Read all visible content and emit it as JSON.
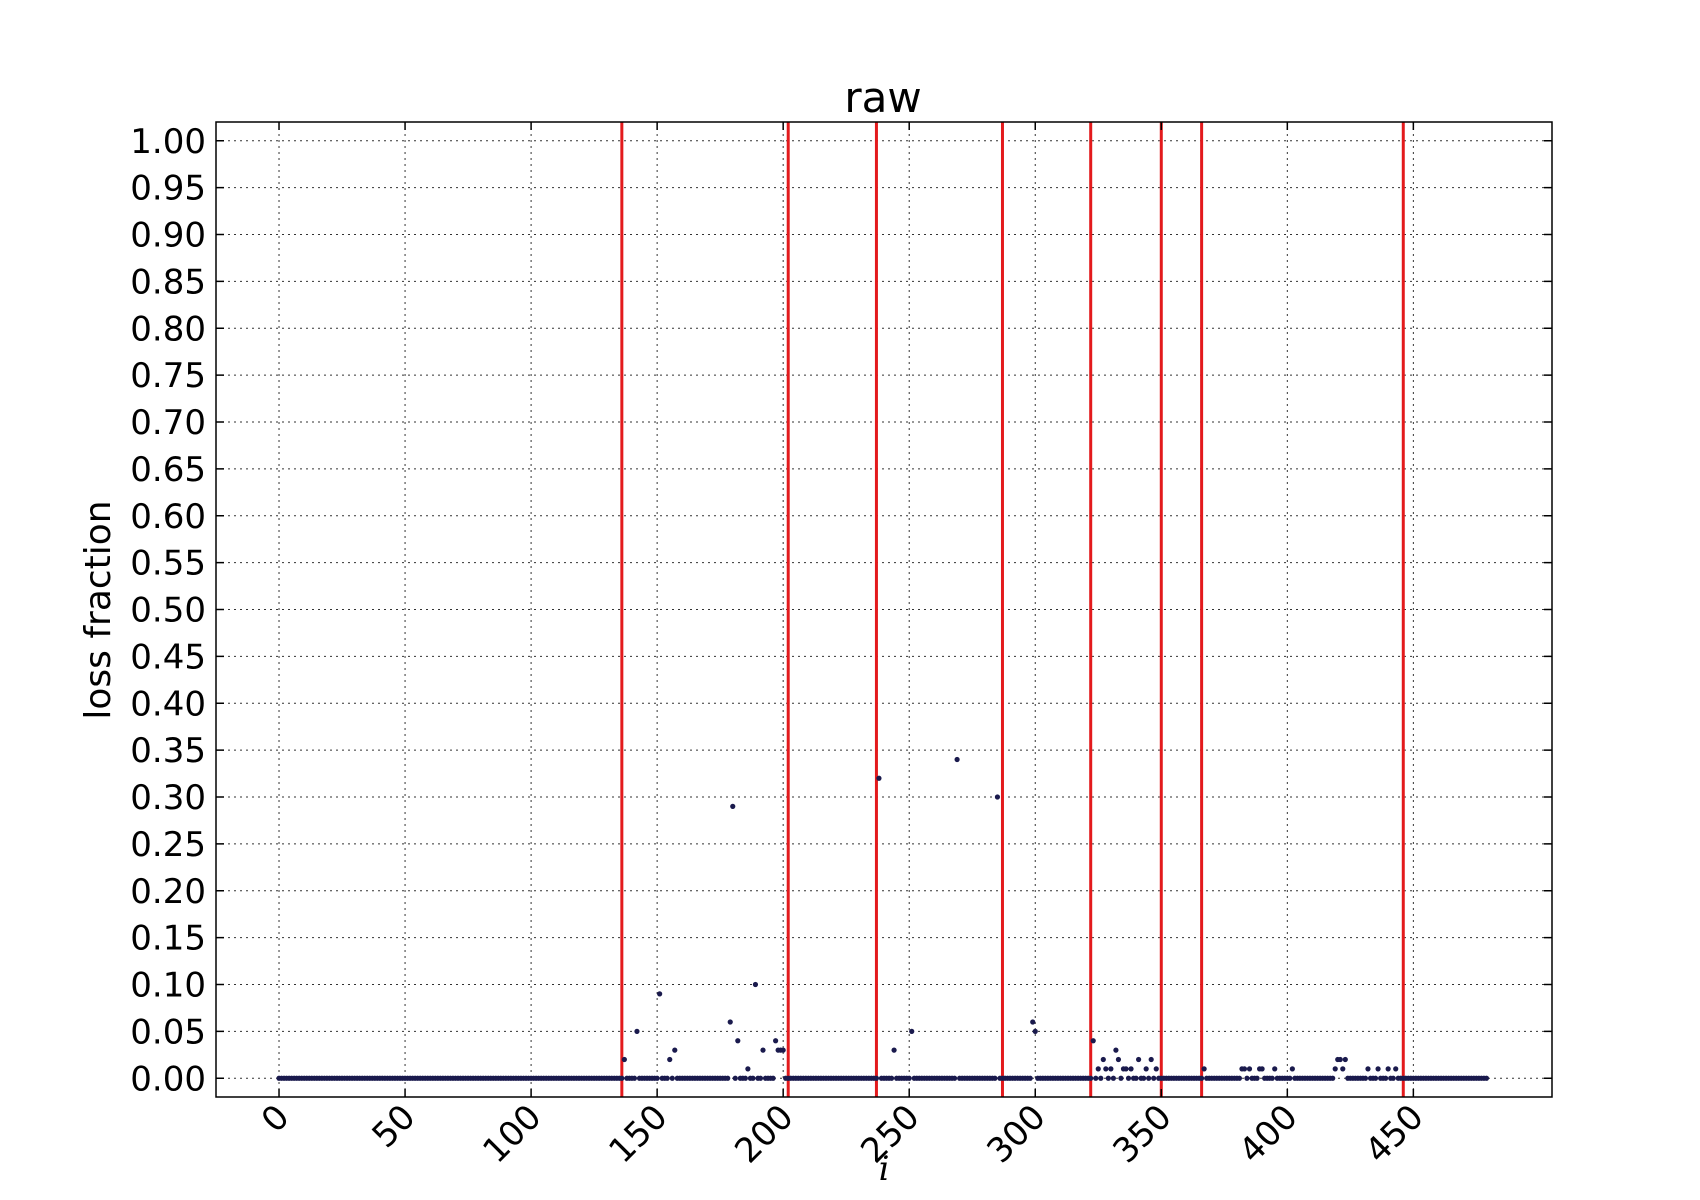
{
  "chart_data": {
    "type": "scatter",
    "title": "raw",
    "xlabel": "i",
    "ylabel": "loss fraction",
    "xlim": [
      -25,
      505
    ],
    "ylim": [
      -0.02,
      1.02
    ],
    "x_ticks": [
      0,
      50,
      100,
      150,
      200,
      250,
      300,
      350,
      400,
      450
    ],
    "x_tick_labels": [
      "0",
      "50",
      "100",
      "150",
      "200",
      "250",
      "300",
      "350",
      "400",
      "450"
    ],
    "y_ticks": [
      0.0,
      0.05,
      0.1,
      0.15,
      0.2,
      0.25,
      0.3,
      0.35,
      0.4,
      0.45,
      0.5,
      0.55,
      0.6,
      0.65,
      0.7,
      0.75,
      0.8,
      0.85,
      0.9,
      0.95,
      1.0
    ],
    "y_tick_labels": [
      "0.00",
      "0.05",
      "0.10",
      "0.15",
      "0.20",
      "0.25",
      "0.30",
      "0.35",
      "0.40",
      "0.45",
      "0.50",
      "0.55",
      "0.60",
      "0.65",
      "0.70",
      "0.75",
      "0.80",
      "0.85",
      "0.90",
      "0.95",
      "1.00"
    ],
    "grid": true,
    "marker_color": "#1a1a4d",
    "vline_color": "#e31a1c",
    "vertical_lines": [
      136,
      202,
      237,
      287,
      322,
      350,
      366,
      446
    ],
    "point_count": 480,
    "nonzero_points": [
      [
        137,
        0.02
      ],
      [
        142,
        0.05
      ],
      [
        151,
        0.09
      ],
      [
        155,
        0.02
      ],
      [
        157,
        0.03
      ],
      [
        179,
        0.06
      ],
      [
        180,
        0.29
      ],
      [
        182,
        0.04
      ],
      [
        186,
        0.01
      ],
      [
        189,
        0.1
      ],
      [
        192,
        0.03
      ],
      [
        197,
        0.04
      ],
      [
        198,
        0.03
      ],
      [
        199,
        0.03
      ],
      [
        200,
        0.03
      ],
      [
        238,
        0.32
      ],
      [
        244,
        0.03
      ],
      [
        251,
        0.05
      ],
      [
        269,
        0.34
      ],
      [
        285,
        0.3
      ],
      [
        299,
        0.06
      ],
      [
        300,
        0.05
      ],
      [
        323,
        0.04
      ],
      [
        325,
        0.01
      ],
      [
        327,
        0.02
      ],
      [
        328,
        0.01
      ],
      [
        330,
        0.01
      ],
      [
        332,
        0.03
      ],
      [
        333,
        0.02
      ],
      [
        335,
        0.01
      ],
      [
        336,
        0.01
      ],
      [
        338,
        0.01
      ],
      [
        341,
        0.02
      ],
      [
        344,
        0.01
      ],
      [
        346,
        0.02
      ],
      [
        348,
        0.01
      ],
      [
        367,
        0.01
      ],
      [
        382,
        0.01
      ],
      [
        383,
        0.01
      ],
      [
        385,
        0.01
      ],
      [
        389,
        0.01
      ],
      [
        390,
        0.01
      ],
      [
        395,
        0.01
      ],
      [
        402,
        0.01
      ],
      [
        419,
        0.01
      ],
      [
        420,
        0.02
      ],
      [
        421,
        0.02
      ],
      [
        422,
        0.01
      ],
      [
        423,
        0.02
      ],
      [
        432,
        0.01
      ],
      [
        436,
        0.01
      ],
      [
        440,
        0.01
      ],
      [
        443,
        0.01
      ]
    ]
  }
}
